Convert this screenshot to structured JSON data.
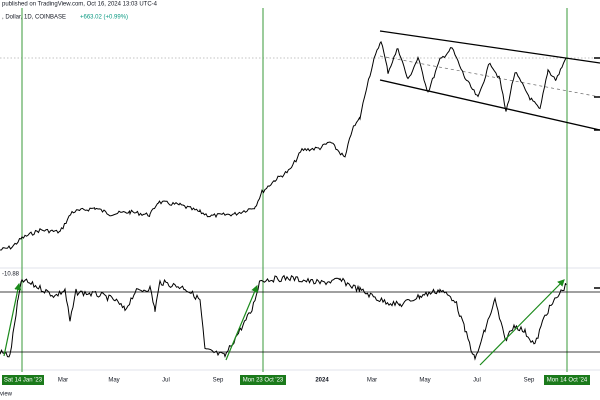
{
  "header": {
    "published": "published on TradingView.com, Oct 16, 2024 13:03 UTC-4",
    "symbol": ", Dollar, 1D, COINBASE",
    "change": "+663.02 (+0.99%)"
  },
  "oscillator": {
    "label": "-10.88"
  },
  "x_axis": {
    "labels": [
      "Mar",
      "May",
      "Jul",
      "Sep",
      "2024",
      "Mar",
      "May",
      "Jul",
      "Sep"
    ],
    "highlighted": [
      "Sat 14 Jan '23",
      "Mon 23 Oct '23",
      "Mon 14 Oct '24"
    ]
  },
  "footer": {
    "text": "view"
  }
}
